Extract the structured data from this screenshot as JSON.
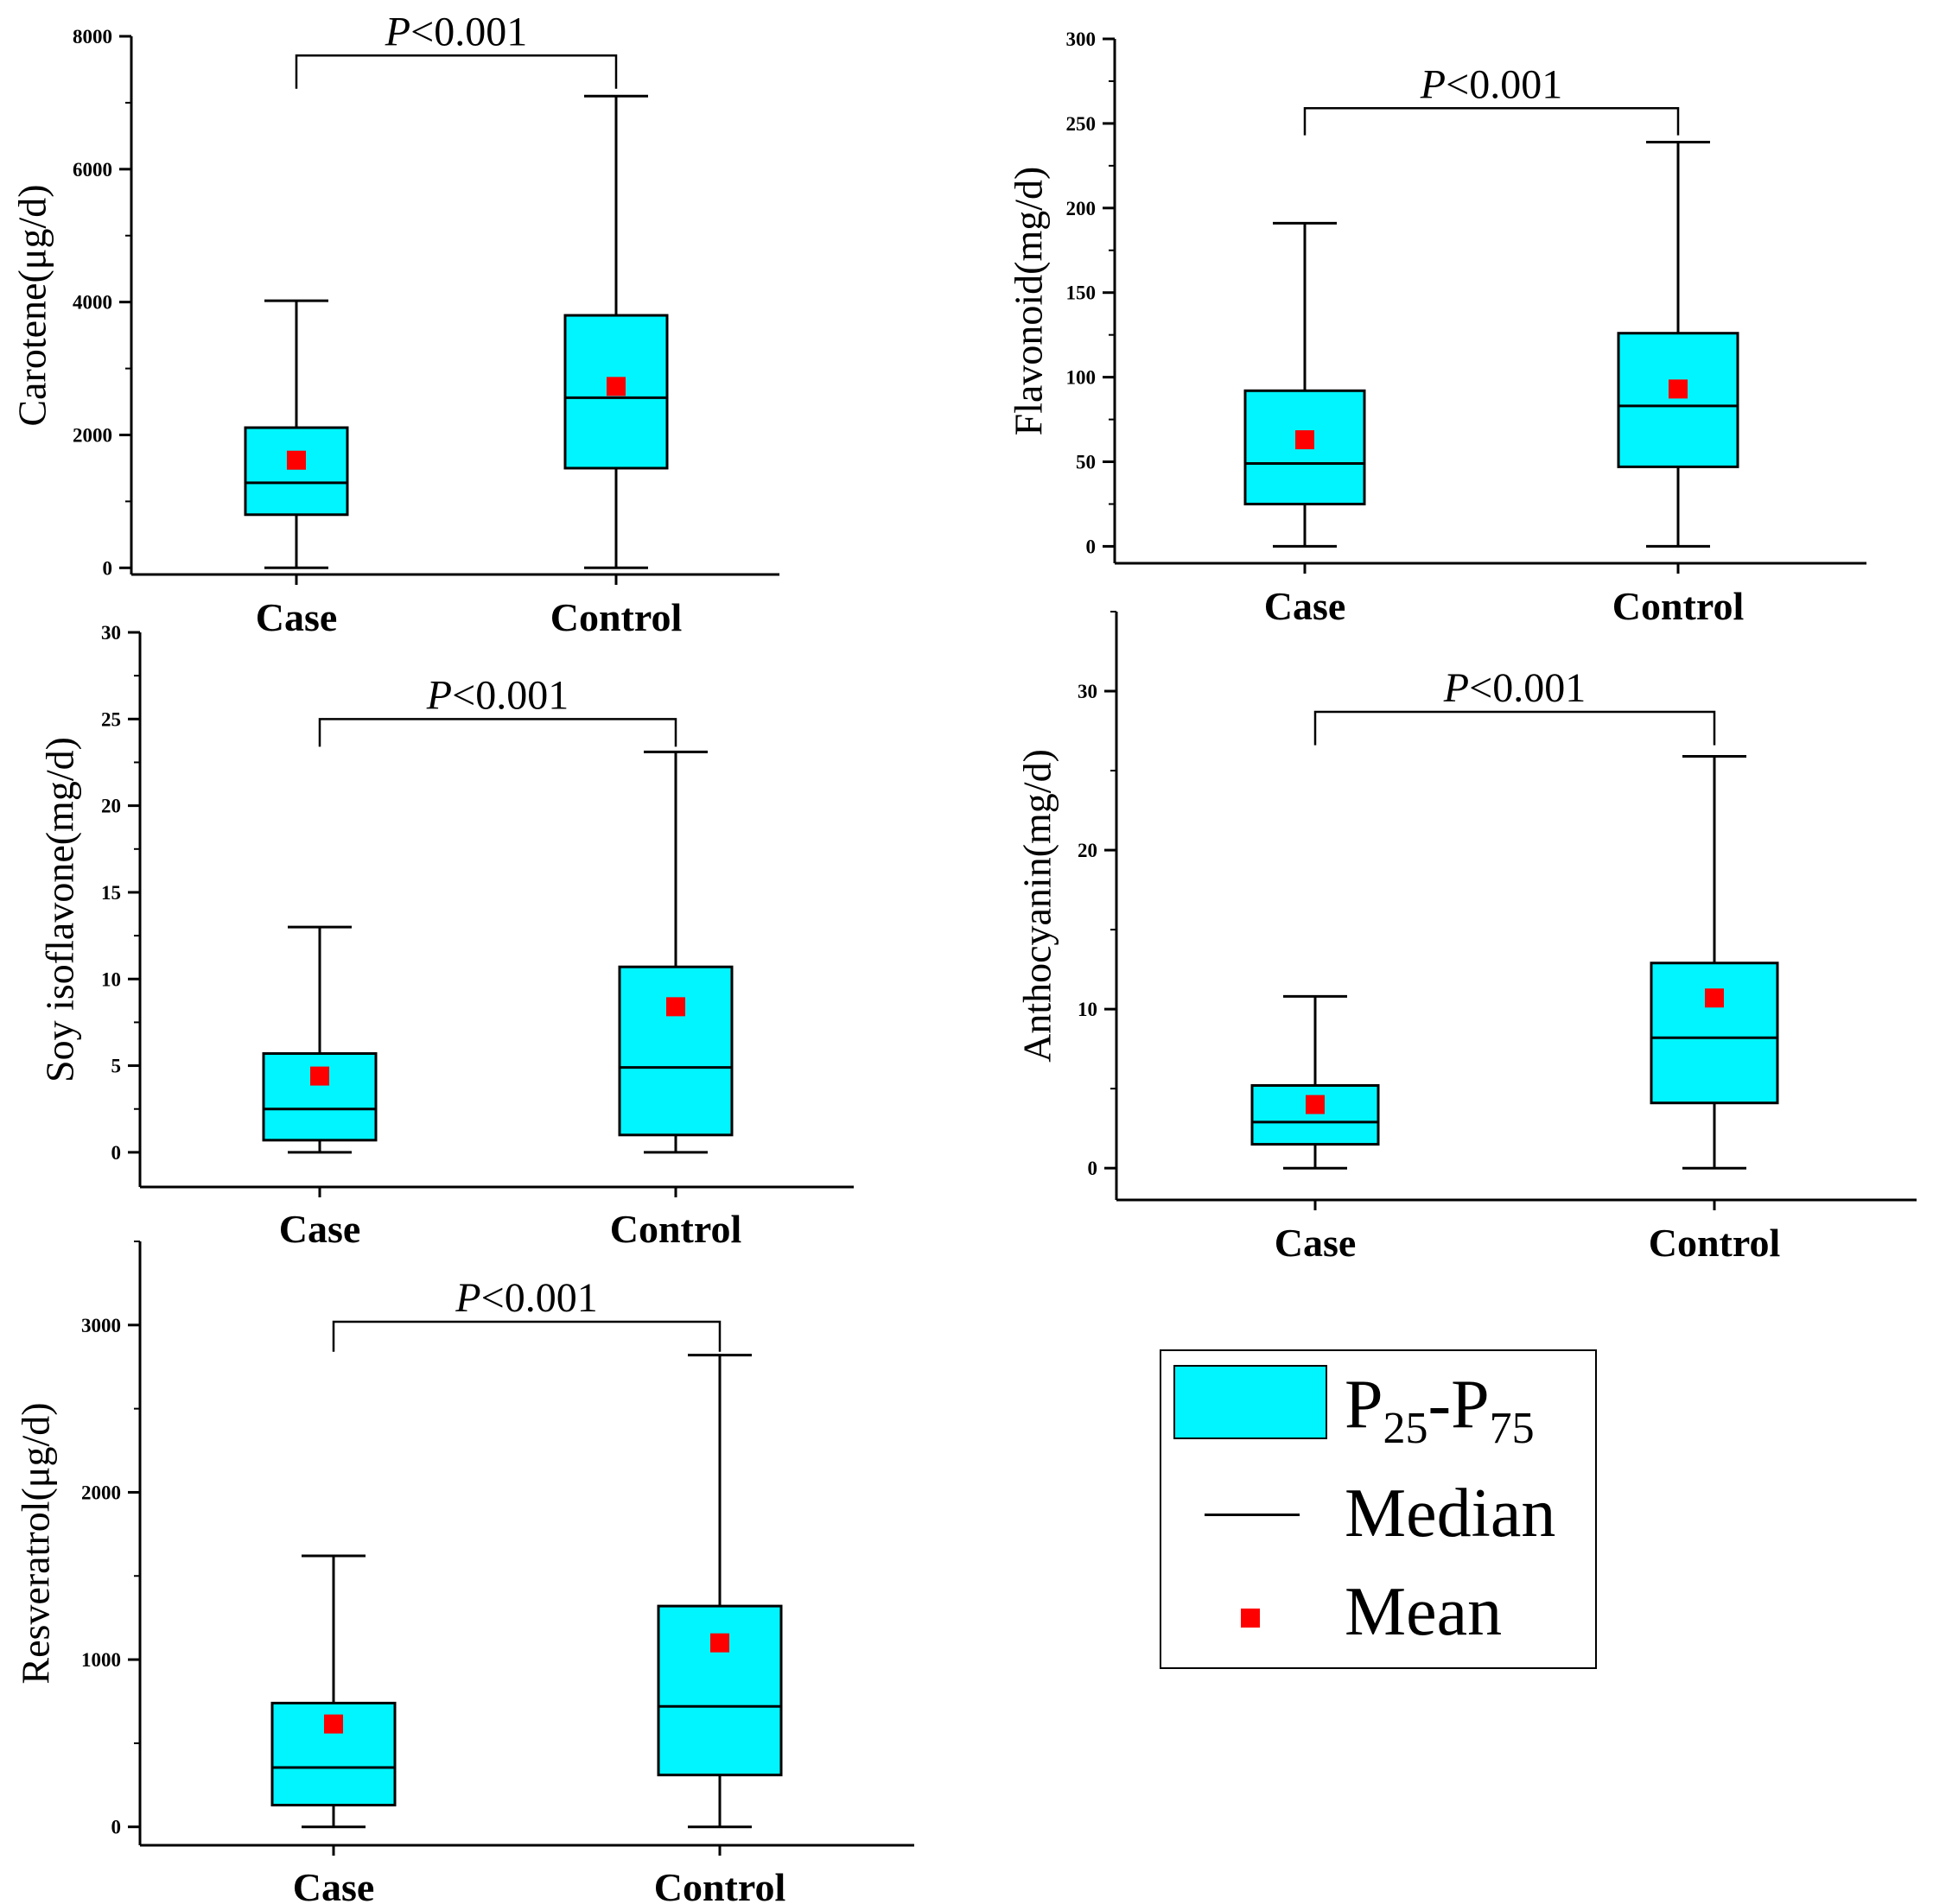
{
  "colors": {
    "box_fill": "#00F5FF",
    "mean": "#FF0000",
    "line": "#000000"
  },
  "legend": {
    "box_p1": "P",
    "box_s1": "25",
    "box_p2": "-P",
    "box_s2": "75",
    "median": "Median",
    "mean": "Mean"
  },
  "chart_data": [
    {
      "type": "box",
      "ylabel": "Carotene(μg/d)",
      "categories": [
        "Case",
        "Control"
      ],
      "ylim": [
        -100,
        8000
      ],
      "yticks": [
        0,
        2000,
        4000,
        6000,
        8000
      ],
      "minor_step": 1000,
      "boxes": [
        {
          "min": 0,
          "q1": 800,
          "median": 1280,
          "q3": 2110,
          "max": 4020,
          "mean": 1620
        },
        {
          "min": 0,
          "q1": 1500,
          "median": 2560,
          "q3": 3800,
          "max": 7100,
          "mean": 2730
        }
      ],
      "significance": {
        "italic": "P",
        "rest": "<0.001",
        "y": 7710,
        "drop": 7210
      }
    },
    {
      "type": "box",
      "ylabel": "Flavonoid(mg/d)",
      "categories": [
        "Case",
        "Control"
      ],
      "ylim": [
        -10,
        300
      ],
      "yticks": [
        0,
        50,
        100,
        150,
        200,
        250,
        300
      ],
      "minor_step": 25,
      "boxes": [
        {
          "min": 0,
          "q1": 25,
          "median": 49,
          "q3": 92,
          "max": 191,
          "mean": 63
        },
        {
          "min": 0,
          "q1": 47,
          "median": 83,
          "q3": 126,
          "max": 239,
          "mean": 93
        }
      ],
      "significance": {
        "italic": "P",
        "rest": "<0.001",
        "y": 259,
        "drop": 243
      }
    },
    {
      "type": "box",
      "ylabel": "Soy isoflavone(mg/d)",
      "categories": [
        "Case",
        "Control"
      ],
      "ylim": [
        -2,
        30
      ],
      "yticks": [
        0,
        5,
        10,
        15,
        20,
        25,
        30
      ],
      "minor_step": 2.5,
      "boxes": [
        {
          "min": 0,
          "q1": 0.7,
          "median": 2.5,
          "q3": 5.7,
          "max": 13.0,
          "mean": 4.4
        },
        {
          "min": 0,
          "q1": 1.0,
          "median": 4.9,
          "q3": 10.7,
          "max": 23.1,
          "mean": 8.4
        }
      ],
      "significance": {
        "italic": "P",
        "rest": "<0.001",
        "y": 25.0,
        "drop": 23.4
      }
    },
    {
      "type": "box",
      "ylabel": "Anthocyanin(mg/d)",
      "categories": [
        "Case",
        "Control"
      ],
      "ylim": [
        -2,
        35
      ],
      "yticks": [
        0,
        10,
        20,
        30
      ],
      "minor_step": 5,
      "boxes": [
        {
          "min": 0,
          "q1": 1.5,
          "median": 2.9,
          "q3": 5.2,
          "max": 10.8,
          "mean": 4.0
        },
        {
          "min": 0,
          "q1": 4.1,
          "median": 8.2,
          "q3": 12.9,
          "max": 25.9,
          "mean": 10.7
        }
      ],
      "significance": {
        "italic": "P",
        "rest": "<0.001",
        "y": 28.7,
        "drop": 26.6
      }
    },
    {
      "type": "box",
      "ylabel": "Resveratrol(μg/d)",
      "categories": [
        "Case",
        "Control"
      ],
      "ylim": [
        -110,
        3500
      ],
      "yticks": [
        0,
        1000,
        2000,
        3000
      ],
      "minor_step": 500,
      "boxes": [
        {
          "min": 0,
          "q1": 130,
          "median": 355,
          "q3": 740,
          "max": 1620,
          "mean": 615
        },
        {
          "min": 0,
          "q1": 310,
          "median": 720,
          "q3": 1320,
          "max": 2820,
          "mean": 1100
        }
      ],
      "significance": {
        "italic": "P",
        "rest": "<0.001",
        "y": 3020,
        "drop": 2840
      }
    }
  ]
}
